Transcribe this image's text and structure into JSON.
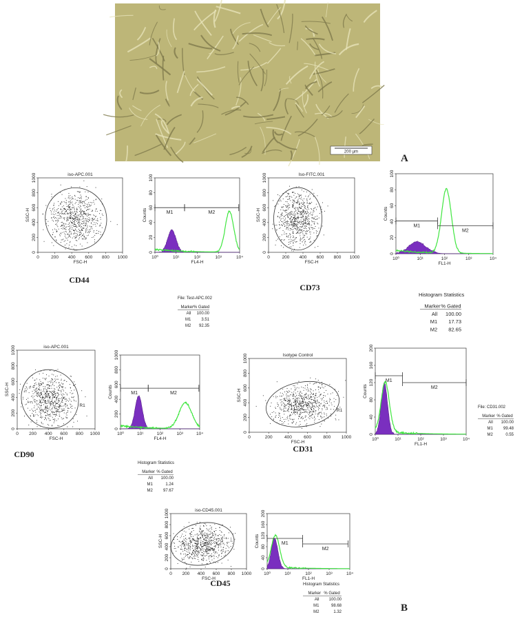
{
  "micrograph": {
    "scale_bar": "200 µm"
  },
  "panel_labels": [
    "A",
    "B"
  ],
  "panels": [
    {
      "name": "CD44",
      "scatter": {
        "title": "iso-APC.001",
        "x_label": "FSC-H",
        "y_label": "SSC-H",
        "xticks": [
          "0",
          "200",
          "400",
          "600",
          "800",
          "1000"
        ],
        "yticks": [
          "0",
          "200",
          "400",
          "600",
          "800",
          "1000"
        ]
      },
      "histogram": {
        "x_label": "FL4-H",
        "y_label": "Counts",
        "xticks": [
          "10⁰",
          "10¹",
          "10²",
          "10³",
          "10⁴"
        ],
        "yticks": [
          "0",
          "20",
          "40",
          "60",
          "80",
          "100"
        ],
        "markers": [
          "M1",
          "M2"
        ]
      }
    },
    {
      "name": "CD73",
      "scatter": {
        "title": "Iso-FITC.001",
        "x_label": "FSC-H",
        "y_label": "SSC-H",
        "xticks": [
          "0",
          "200",
          "400",
          "600",
          "800",
          "1000"
        ],
        "yticks": [
          "0",
          "200",
          "400",
          "600",
          "800",
          "1000"
        ]
      },
      "histogram": {
        "x_label": "FL1-H",
        "y_label": "Counts",
        "xticks": [
          "10⁰",
          "10¹",
          "10²",
          "10³",
          "10⁴"
        ],
        "yticks": [
          "0",
          "20",
          "40",
          "60",
          "80",
          "100"
        ],
        "markers": [
          "M1",
          "M2"
        ]
      }
    },
    {
      "name": "CD90",
      "scatter": {
        "title": "iso-APC.001",
        "x_label": "FSC-H",
        "y_label": "SSC-H",
        "gate": "R1",
        "xticks": [
          "0",
          "200",
          "400",
          "600",
          "800",
          "1000"
        ],
        "yticks": [
          "0",
          "200",
          "400",
          "600",
          "800",
          "1000"
        ]
      },
      "histogram": {
        "x_label": "FL4-H",
        "y_label": "Counts",
        "xticks": [
          "10⁰",
          "10¹",
          "10²",
          "10³",
          "10⁴"
        ],
        "yticks": [
          "0",
          "200",
          "400",
          "600",
          "800",
          "1000"
        ],
        "markers": [
          "M1",
          "M2"
        ]
      }
    },
    {
      "name": "CD31",
      "scatter": {
        "title": "Isotype Control",
        "x_label": "FSC-H",
        "y_label": "SSC-H",
        "gate": "R1",
        "xticks": [
          "0",
          "200",
          "400",
          "600",
          "800",
          "1000"
        ],
        "yticks": [
          "0",
          "200",
          "400",
          "600",
          "800",
          "1000"
        ]
      },
      "histogram": {
        "x_label": "FL1-H",
        "y_label": "Counts",
        "xticks": [
          "10⁰",
          "10¹",
          "10²",
          "10³",
          "10⁴"
        ],
        "yticks": [
          "0",
          "40",
          "80",
          "120",
          "160",
          "200"
        ],
        "markers": [
          "M1",
          "M2"
        ]
      }
    },
    {
      "name": "CD45",
      "scatter": {
        "title": "iso-CD45.001",
        "x_label": "FSC-H",
        "y_label": "SSC-H",
        "xticks": [
          "0",
          "200",
          "400",
          "600",
          "800",
          "1000"
        ],
        "yticks": [
          "0",
          "200",
          "400",
          "600",
          "800",
          "1000"
        ]
      },
      "histogram": {
        "x_label": "FL1-H",
        "y_label": "Counts",
        "xticks": [
          "10⁰",
          "10¹",
          "10²",
          "10³",
          "10⁴"
        ],
        "yticks": [
          "0",
          "40",
          "80",
          "120",
          "160",
          "200"
        ],
        "markers": [
          "M1",
          "M2"
        ]
      }
    }
  ],
  "tables": [
    {
      "title": "File: Test-APC.002",
      "header": [
        "Marker",
        "% Gated"
      ],
      "rows": [
        [
          "All",
          "100.00"
        ],
        [
          "M1",
          "3.51"
        ],
        [
          "M2",
          "92.35"
        ]
      ]
    },
    {
      "title": "Histogram Statistics",
      "header": [
        "Marker",
        "% Gated"
      ],
      "rows": [
        [
          "All",
          "100.00"
        ],
        [
          "M1",
          "17.73"
        ],
        [
          "M2",
          "82.65"
        ]
      ]
    },
    {
      "title": "File: CD31.002",
      "header": [
        "Marker",
        "% Gated"
      ],
      "rows": [
        [
          "All",
          "100.00"
        ],
        [
          "M1",
          "99.48"
        ],
        [
          "M2",
          "0.55"
        ]
      ]
    },
    {
      "title": "Histogram Statistics",
      "header": [
        "Marker",
        "% Gated"
      ],
      "rows": [
        [
          "All",
          "100.00"
        ],
        [
          "M1",
          "1.24"
        ],
        [
          "M2",
          "97.67"
        ]
      ]
    },
    {
      "title": "Histogram Statistics",
      "header": [
        "Marker",
        "% Gated"
      ],
      "rows": [
        [
          "All",
          "100.00"
        ],
        [
          "M1",
          "98.68"
        ],
        [
          "M2",
          "1.32"
        ]
      ]
    }
  ]
}
